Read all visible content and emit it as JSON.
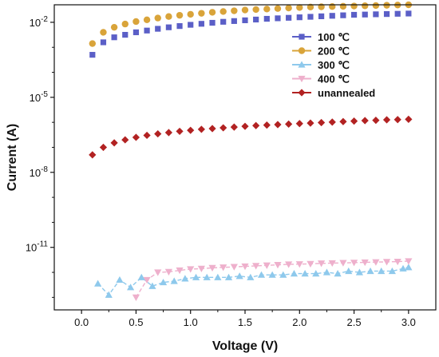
{
  "chart_data": {
    "type": "scatter",
    "xlabel": "Voltage (V)",
    "ylabel": "Current (A)",
    "xlim": [
      -0.25,
      3.25
    ],
    "ylim_log10": [
      -13.5,
      -1.3
    ],
    "y_scale": "log",
    "x_ticks": [
      {
        "value": 0.0,
        "label": "0.0"
      },
      {
        "value": 0.5,
        "label": "0.5"
      },
      {
        "value": 1.0,
        "label": "1.0"
      },
      {
        "value": 1.5,
        "label": "1.5"
      },
      {
        "value": 2.0,
        "label": "2.0"
      },
      {
        "value": 2.5,
        "label": "2.5"
      },
      {
        "value": 3.0,
        "label": "3.0"
      }
    ],
    "y_ticks": [
      {
        "exp": -2,
        "label": "10",
        "sup": "-2"
      },
      {
        "exp": -5,
        "label": "10",
        "sup": "-5"
      },
      {
        "exp": -8,
        "label": "10",
        "sup": "-8"
      },
      {
        "exp": -11,
        "label": "10",
        "sup": "-11"
      }
    ],
    "grid": false,
    "legend_position": "top-right",
    "series": [
      {
        "name": "100 ℃",
        "marker": "square",
        "color": "#5b5fc7",
        "x": [
          0.1,
          0.2,
          0.3,
          0.4,
          0.5,
          0.6,
          0.7,
          0.8,
          0.9,
          1.0,
          1.1,
          1.2,
          1.3,
          1.4,
          1.5,
          1.6,
          1.7,
          1.8,
          1.9,
          2.0,
          2.1,
          2.2,
          2.3,
          2.4,
          2.5,
          2.6,
          2.7,
          2.8,
          2.9,
          3.0
        ],
        "log10_y": [
          -3.3,
          -2.8,
          -2.6,
          -2.5,
          -2.4,
          -2.33,
          -2.26,
          -2.2,
          -2.15,
          -2.1,
          -2.06,
          -2.02,
          -1.98,
          -1.95,
          -1.92,
          -1.89,
          -1.86,
          -1.84,
          -1.82,
          -1.8,
          -1.78,
          -1.76,
          -1.74,
          -1.72,
          -1.7,
          -1.69,
          -1.68,
          -1.67,
          -1.66,
          -1.65
        ]
      },
      {
        "name": "200 ℃",
        "marker": "circle",
        "color": "#d9a43a",
        "x": [
          0.1,
          0.2,
          0.3,
          0.4,
          0.5,
          0.6,
          0.7,
          0.8,
          0.9,
          1.0,
          1.1,
          1.2,
          1.3,
          1.4,
          1.5,
          1.6,
          1.7,
          1.8,
          1.9,
          2.0,
          2.1,
          2.2,
          2.3,
          2.4,
          2.5,
          2.6,
          2.7,
          2.8,
          2.9,
          3.0
        ],
        "log10_y": [
          -2.85,
          -2.4,
          -2.2,
          -2.07,
          -1.97,
          -1.9,
          -1.83,
          -1.77,
          -1.72,
          -1.68,
          -1.64,
          -1.6,
          -1.57,
          -1.54,
          -1.51,
          -1.49,
          -1.47,
          -1.45,
          -1.43,
          -1.41,
          -1.39,
          -1.38,
          -1.37,
          -1.36,
          -1.35,
          -1.34,
          -1.33,
          -1.32,
          -1.31,
          -1.3
        ]
      },
      {
        "name": "300 ℃",
        "marker": "triangle-up",
        "color": "#8ec9ec",
        "x": [
          0.15,
          0.25,
          0.35,
          0.45,
          0.55,
          0.65,
          0.75,
          0.85,
          0.95,
          1.05,
          1.15,
          1.25,
          1.35,
          1.45,
          1.55,
          1.65,
          1.75,
          1.85,
          1.95,
          2.05,
          2.15,
          2.25,
          2.35,
          2.45,
          2.55,
          2.65,
          2.75,
          2.85,
          2.95,
          3.0
        ],
        "log10_y": [
          -12.45,
          -12.9,
          -12.3,
          -12.6,
          -12.2,
          -12.55,
          -12.4,
          -12.35,
          -12.25,
          -12.2,
          -12.2,
          -12.2,
          -12.2,
          -12.15,
          -12.2,
          -12.1,
          -12.1,
          -12.1,
          -12.05,
          -12.05,
          -12.05,
          -12.0,
          -12.05,
          -11.95,
          -12.0,
          -11.95,
          -11.95,
          -11.95,
          -11.85,
          -11.8
        ]
      },
      {
        "name": "400 ℃",
        "marker": "triangle-down",
        "color": "#eeb0cc",
        "x": [
          0.5,
          0.6,
          0.7,
          0.8,
          0.9,
          1.0,
          1.1,
          1.2,
          1.3,
          1.4,
          1.5,
          1.6,
          1.7,
          1.8,
          1.9,
          2.0,
          2.1,
          2.2,
          2.3,
          2.4,
          2.5,
          2.6,
          2.7,
          2.8,
          2.9,
          3.0
        ],
        "log10_y": [
          -13.0,
          -12.3,
          -12.0,
          -11.98,
          -11.92,
          -11.87,
          -11.85,
          -11.82,
          -11.8,
          -11.78,
          -11.76,
          -11.74,
          -11.72,
          -11.7,
          -11.68,
          -11.67,
          -11.66,
          -11.64,
          -11.63,
          -11.62,
          -11.61,
          -11.6,
          -11.59,
          -11.58,
          -11.57,
          -11.55
        ]
      },
      {
        "name": "unannealed",
        "marker": "diamond",
        "color": "#b22222",
        "x": [
          0.1,
          0.2,
          0.3,
          0.4,
          0.5,
          0.6,
          0.7,
          0.8,
          0.9,
          1.0,
          1.1,
          1.2,
          1.3,
          1.4,
          1.5,
          1.6,
          1.7,
          1.8,
          1.9,
          2.0,
          2.1,
          2.2,
          2.3,
          2.4,
          2.5,
          2.6,
          2.7,
          2.8,
          2.9,
          3.0
        ],
        "log10_y": [
          -7.3,
          -7.0,
          -6.82,
          -6.7,
          -6.6,
          -6.52,
          -6.46,
          -6.41,
          -6.36,
          -6.32,
          -6.28,
          -6.25,
          -6.22,
          -6.19,
          -6.16,
          -6.13,
          -6.11,
          -6.09,
          -6.07,
          -6.05,
          -6.03,
          -6.01,
          -5.99,
          -5.97,
          -5.95,
          -5.93,
          -5.92,
          -5.9,
          -5.89,
          -5.88
        ]
      }
    ]
  }
}
